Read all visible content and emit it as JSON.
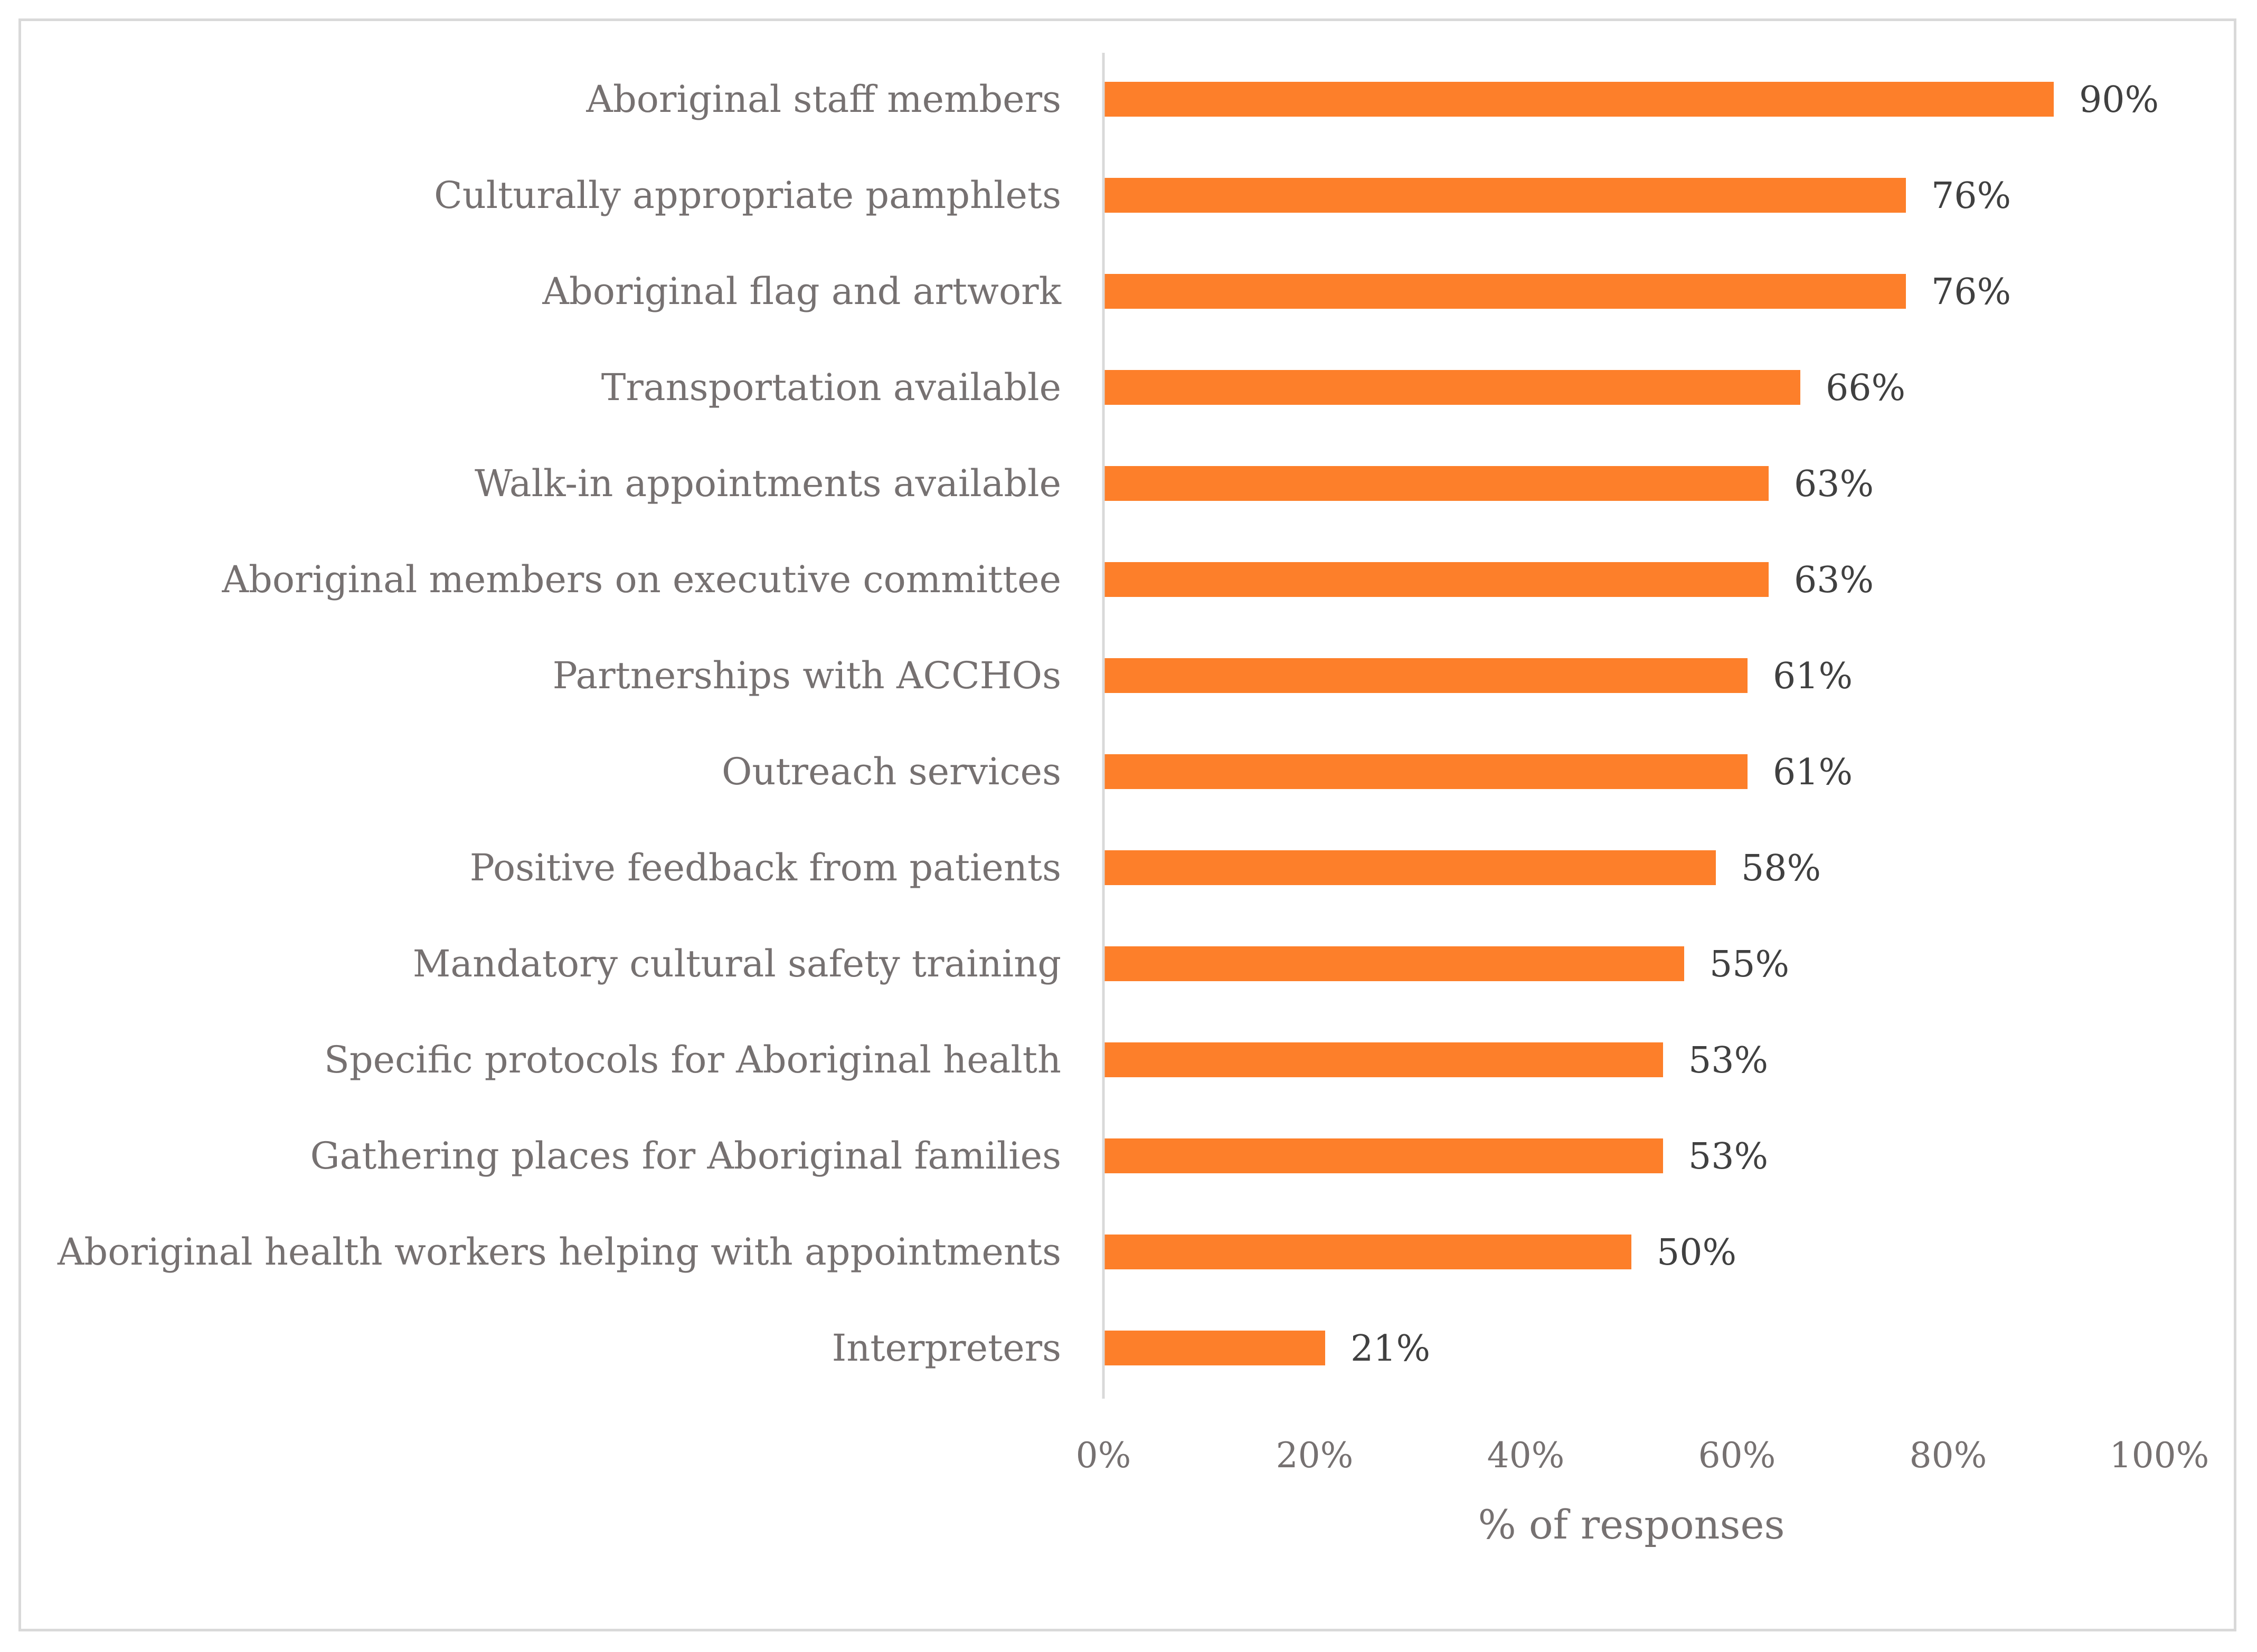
{
  "chart_data": {
    "type": "bar",
    "orientation": "horizontal",
    "title": "",
    "categories": [
      "Aboriginal staff members",
      "Culturally appropriate pamphlets",
      "Aboriginal flag and artwork",
      "Transportation available",
      "Walk-in appointments available",
      "Aboriginal members on executive committee",
      "Partnerships with ACCHOs",
      "Outreach services",
      "Positive feedback from patients",
      "Mandatory cultural safety training",
      "Specific protocols for Aboriginal health",
      "Gathering places for Aboriginal families",
      "Aboriginal health workers helping with appointments",
      "Interpreters"
    ],
    "values": [
      90,
      76,
      76,
      66,
      63,
      63,
      61,
      61,
      58,
      55,
      53,
      53,
      50,
      21
    ],
    "data_labels": [
      "90%",
      "76%",
      "76%",
      "66%",
      "63%",
      "63%",
      "61%",
      "61%",
      "58%",
      "55%",
      "53%",
      "53%",
      "50%",
      "21%"
    ],
    "xlabel": "% of responses",
    "ylabel": "",
    "xlim": [
      0,
      100
    ],
    "x_ticks": [
      0,
      20,
      40,
      60,
      80,
      100
    ],
    "x_tick_labels": [
      "0%",
      "20%",
      "40%",
      "60%",
      "80%",
      "100%"
    ],
    "grid": false,
    "legend": "none",
    "bar_color": "#fd7f2a",
    "axis_color": "#d9d9d9",
    "label_color": "#767171",
    "value_label_color": "#404040"
  }
}
